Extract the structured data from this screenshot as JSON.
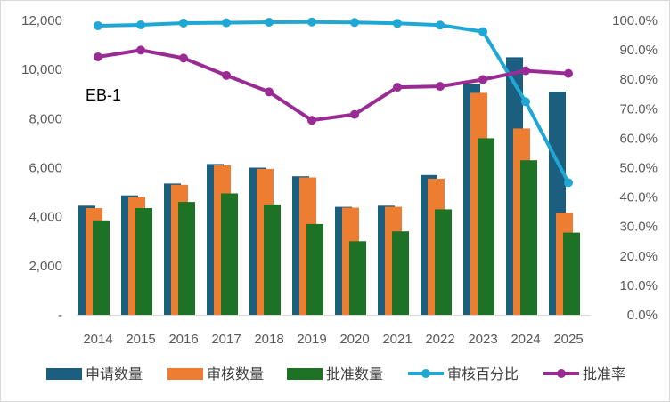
{
  "chart_data": {
    "type": "bar",
    "title": "EB-1",
    "categories": [
      "2014",
      "2015",
      "2016",
      "2017",
      "2018",
      "2019",
      "2020",
      "2021",
      "2022",
      "2023",
      "2024",
      "2025"
    ],
    "series": [
      {
        "name": "申请数量",
        "kind": "bar",
        "axis": "left",
        "color": "#1b5e80",
        "values": [
          4450,
          4870,
          5350,
          6150,
          6000,
          5650,
          4400,
          4450,
          5700,
          9400,
          10500,
          9100
        ]
      },
      {
        "name": "审核数量",
        "kind": "bar",
        "axis": "left",
        "color": "#ed7d31",
        "values": [
          4350,
          4800,
          5300,
          6100,
          5950,
          5600,
          4370,
          4400,
          5550,
          9050,
          7600,
          4150
        ]
      },
      {
        "name": "批准数量",
        "kind": "bar",
        "axis": "left",
        "color": "#1e7224",
        "values": [
          3850,
          4350,
          4600,
          4950,
          4500,
          3700,
          3000,
          3400,
          4300,
          7200,
          6300,
          3350
        ]
      },
      {
        "name": "审核百分比",
        "kind": "line",
        "axis": "right",
        "color": "#1fa7d6",
        "values": [
          0.982,
          0.985,
          0.991,
          0.992,
          0.994,
          0.995,
          0.993,
          0.99,
          0.984,
          0.962,
          0.724,
          0.449
        ]
      },
      {
        "name": "批准率",
        "kind": "line",
        "axis": "right",
        "color": "#9b2b94",
        "values": [
          0.876,
          0.899,
          0.872,
          0.813,
          0.757,
          0.661,
          0.681,
          0.773,
          0.776,
          0.799,
          0.829,
          0.82
        ]
      }
    ],
    "y_left": {
      "min": 0,
      "max": 12000,
      "ticks": [
        "-",
        "2,000",
        "4,000",
        "6,000",
        "8,000",
        "10,000",
        "12,000"
      ]
    },
    "y_right": {
      "min": 0,
      "max": 1,
      "ticks": [
        "0.0%",
        "10.0%",
        "20.0%",
        "30.0%",
        "40.0%",
        "50.0%",
        "60.0%",
        "70.0%",
        "80.0%",
        "90.0%",
        "100.0%"
      ]
    },
    "grid": false,
    "legend": "bottom"
  }
}
